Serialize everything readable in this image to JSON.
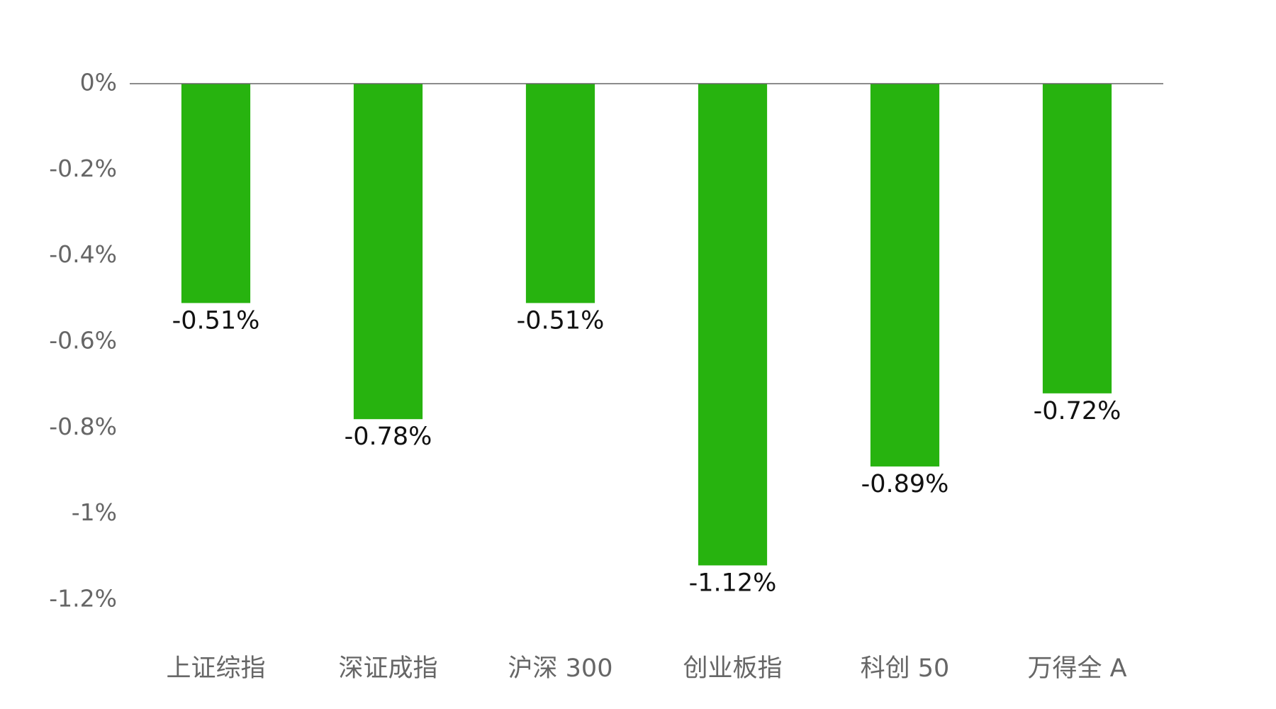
{
  "chart_data": {
    "type": "bar",
    "categories": [
      "上证综指",
      "深证成指",
      "沪深 300",
      "创业板指",
      "科创 50",
      "万得全 A"
    ],
    "values": [
      -0.51,
      -0.78,
      -0.51,
      -1.12,
      -0.89,
      -0.72
    ],
    "value_labels": [
      "-0.51%",
      "-0.78%",
      "-0.51%",
      "-1.12%",
      "-0.89%",
      "-0.72%"
    ],
    "color": "#27b30f",
    "ylim": [
      -1.2,
      0
    ],
    "yticks": [
      {
        "value": 0,
        "label": "0%"
      },
      {
        "value": -0.2,
        "label": "-0.2%"
      },
      {
        "value": -0.4,
        "label": "-0.4%"
      },
      {
        "value": -0.6,
        "label": "-0.6%"
      },
      {
        "value": -0.8,
        "label": "-0.8%"
      },
      {
        "value": -1,
        "label": "-1%"
      },
      {
        "value": -1.2,
        "label": "-1.2%"
      }
    ],
    "grid": false
  }
}
